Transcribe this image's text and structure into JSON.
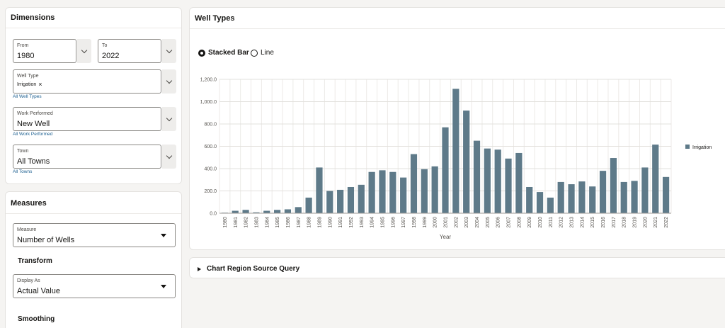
{
  "dimensions": {
    "title": "Dimensions",
    "from": {
      "label": "From",
      "value": "1980"
    },
    "to": {
      "label": "To",
      "value": "2022"
    },
    "well_type": {
      "label": "Well Type",
      "chip": "Irrigation",
      "link": "All Well Types"
    },
    "work_performed": {
      "label": "Work Performed",
      "value": "New Well",
      "link": "All Work Performed"
    },
    "town": {
      "label": "Town",
      "value": "All Towns",
      "link": "All Towns"
    }
  },
  "measures": {
    "title": "Measures",
    "measure": {
      "label": "Measure",
      "value": "Number of Wells"
    },
    "transform_heading": "Transform",
    "display_as": {
      "label": "Display As",
      "value": "Actual Value"
    },
    "smoothing_heading": "Smoothing"
  },
  "well_types": {
    "title": "Well Types",
    "radio_stacked": "Stacked Bar",
    "radio_line": "Line",
    "selected": "Stacked Bar"
  },
  "source_query": {
    "label": "Chart Region Source Query"
  },
  "colors": {
    "bar": "#5e7a89",
    "link": "#1a5e8f"
  },
  "chart_data": {
    "type": "bar",
    "categories": [
      "1980",
      "1981",
      "1982",
      "1983",
      "1984",
      "1985",
      "1986",
      "1987",
      "1988",
      "1989",
      "1990",
      "1991",
      "1992",
      "1993",
      "1994",
      "1995",
      "1996",
      "1997",
      "1998",
      "1999",
      "2000",
      "2001",
      "2002",
      "2003",
      "2004",
      "2005",
      "2006",
      "2007",
      "2008",
      "2009",
      "2010",
      "2011",
      "2012",
      "2013",
      "2014",
      "2015",
      "2016",
      "2017",
      "2018",
      "2019",
      "2020",
      "2021",
      "2022"
    ],
    "series": [
      {
        "name": "Irrigation",
        "values": [
          5,
          22,
          30,
          8,
          22,
          30,
          35,
          55,
          140,
          410,
          200,
          210,
          235,
          255,
          370,
          385,
          370,
          320,
          530,
          395,
          420,
          770,
          1115,
          920,
          650,
          580,
          570,
          490,
          540,
          235,
          190,
          140,
          280,
          260,
          285,
          240,
          380,
          495,
          280,
          290,
          410,
          615,
          325
        ]
      }
    ],
    "xlabel": "Year",
    "ylabel": "",
    "ylim": [
      0,
      1200
    ],
    "yticks": [
      "0.0",
      "200.0",
      "400.0",
      "600.0",
      "800.0",
      "1,000.0",
      "1,200.0"
    ],
    "grid": true,
    "legend": "right"
  }
}
